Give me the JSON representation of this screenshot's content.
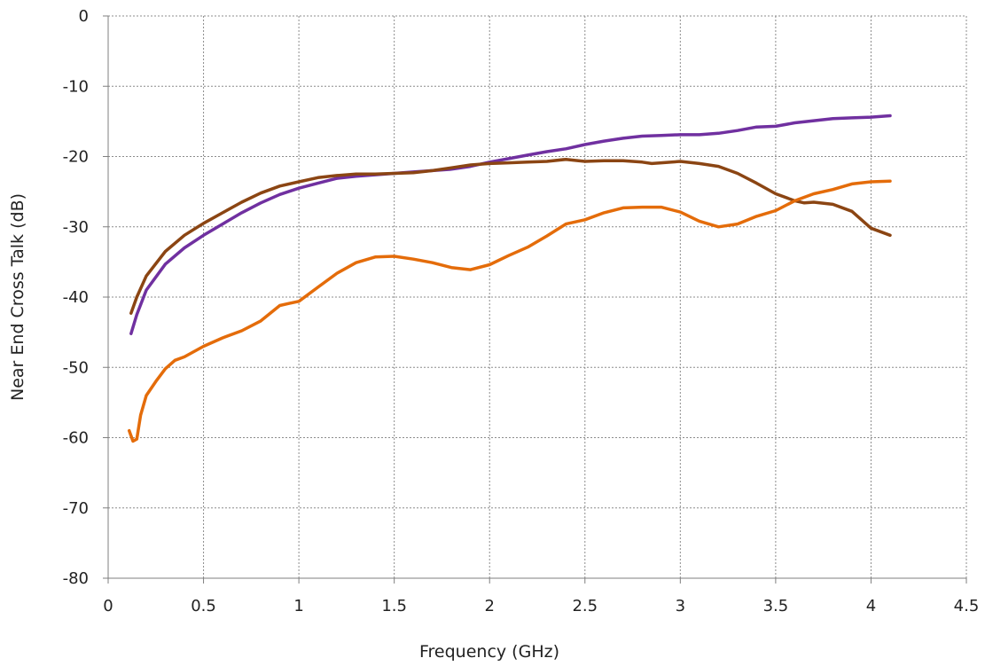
{
  "chart_data": {
    "type": "line",
    "title": "",
    "xlabel": "Frequency (GHz)",
    "ylabel": "Near End Cross Talk (dB)",
    "xlim": [
      0,
      4.5
    ],
    "ylim": [
      -80,
      0
    ],
    "xticks": [
      0,
      0.5,
      1,
      1.5,
      2,
      2.5,
      3,
      3.5,
      4,
      4.5
    ],
    "yticks": [
      0,
      -10,
      -20,
      -30,
      -40,
      -50,
      -60,
      -70,
      -80
    ],
    "xtick_labels": [
      "0",
      "0.5",
      "1",
      "1.5",
      "2",
      "2.5",
      "3",
      "3.5",
      "4",
      "4.5"
    ],
    "ytick_labels": [
      "0",
      "-10",
      "-20",
      "-30",
      "-40",
      "-50",
      "-60",
      "-70",
      "-80"
    ],
    "grid": true,
    "legend": "none",
    "series": [
      {
        "color": "#7030a0",
        "x": [
          0.12,
          0.15,
          0.2,
          0.3,
          0.4,
          0.5,
          0.6,
          0.7,
          0.8,
          0.9,
          1.0,
          1.1,
          1.2,
          1.3,
          1.4,
          1.5,
          1.6,
          1.7,
          1.8,
          1.9,
          2.0,
          2.1,
          2.2,
          2.3,
          2.4,
          2.5,
          2.6,
          2.7,
          2.8,
          2.9,
          3.0,
          3.1,
          3.2,
          3.3,
          3.4,
          3.5,
          3.6,
          3.7,
          3.8,
          3.9,
          4.0,
          4.1
        ],
        "y": [
          -45.2,
          -42.5,
          -39.0,
          -35.3,
          -33.0,
          -31.2,
          -29.6,
          -28.0,
          -26.6,
          -25.4,
          -24.5,
          -23.8,
          -23.1,
          -22.8,
          -22.6,
          -22.4,
          -22.2,
          -22.0,
          -21.8,
          -21.4,
          -20.8,
          -20.3,
          -19.8,
          -19.3,
          -18.9,
          -18.3,
          -17.8,
          -17.4,
          -17.1,
          -17.0,
          -16.9,
          -16.9,
          -16.7,
          -16.3,
          -15.8,
          -15.7,
          -15.2,
          -14.9,
          -14.6,
          -14.5,
          -14.4,
          -14.2
        ]
      },
      {
        "color": "#8b4513",
        "x": [
          0.12,
          0.15,
          0.2,
          0.3,
          0.4,
          0.5,
          0.6,
          0.7,
          0.8,
          0.9,
          1.0,
          1.1,
          1.2,
          1.3,
          1.4,
          1.5,
          1.6,
          1.7,
          1.8,
          1.9,
          2.0,
          2.1,
          2.2,
          2.3,
          2.4,
          2.5,
          2.6,
          2.7,
          2.8,
          2.85,
          2.9,
          3.0,
          3.1,
          3.2,
          3.3,
          3.4,
          3.5,
          3.6,
          3.65,
          3.7,
          3.8,
          3.9,
          4.0,
          4.1
        ],
        "y": [
          -42.3,
          -40.0,
          -37.0,
          -33.5,
          -31.2,
          -29.5,
          -28.0,
          -26.5,
          -25.2,
          -24.2,
          -23.6,
          -23.0,
          -22.7,
          -22.5,
          -22.5,
          -22.4,
          -22.3,
          -22.0,
          -21.6,
          -21.2,
          -21.0,
          -20.9,
          -20.8,
          -20.7,
          -20.4,
          -20.7,
          -20.6,
          -20.6,
          -20.8,
          -21.0,
          -20.9,
          -20.7,
          -21.0,
          -21.4,
          -22.4,
          -23.8,
          -25.3,
          -26.3,
          -26.6,
          -26.5,
          -26.8,
          -27.8,
          -30.2,
          -31.2
        ]
      },
      {
        "color": "#e46c0a",
        "x": [
          0.11,
          0.13,
          0.15,
          0.17,
          0.2,
          0.25,
          0.3,
          0.35,
          0.4,
          0.5,
          0.6,
          0.7,
          0.8,
          0.9,
          0.95,
          1.0,
          1.1,
          1.2,
          1.3,
          1.4,
          1.5,
          1.6,
          1.7,
          1.8,
          1.9,
          2.0,
          2.1,
          2.2,
          2.3,
          2.4,
          2.5,
          2.6,
          2.7,
          2.8,
          2.9,
          3.0,
          3.1,
          3.2,
          3.3,
          3.4,
          3.5,
          3.6,
          3.7,
          3.8,
          3.9,
          4.0,
          4.1
        ],
        "y": [
          -59.0,
          -60.5,
          -60.2,
          -56.8,
          -54.0,
          -52.0,
          -50.2,
          -49.0,
          -48.5,
          -47.0,
          -45.8,
          -44.8,
          -43.4,
          -41.2,
          -40.9,
          -40.6,
          -38.6,
          -36.6,
          -35.1,
          -34.3,
          -34.2,
          -34.6,
          -35.1,
          -35.8,
          -36.1,
          -35.4,
          -34.1,
          -32.9,
          -31.3,
          -29.6,
          -29.0,
          -28.0,
          -27.3,
          -27.2,
          -27.2,
          -27.9,
          -29.2,
          -30.0,
          -29.6,
          -28.5,
          -27.7,
          -26.3,
          -25.3,
          -24.7,
          -23.9,
          -23.6,
          -23.5
        ]
      }
    ]
  }
}
